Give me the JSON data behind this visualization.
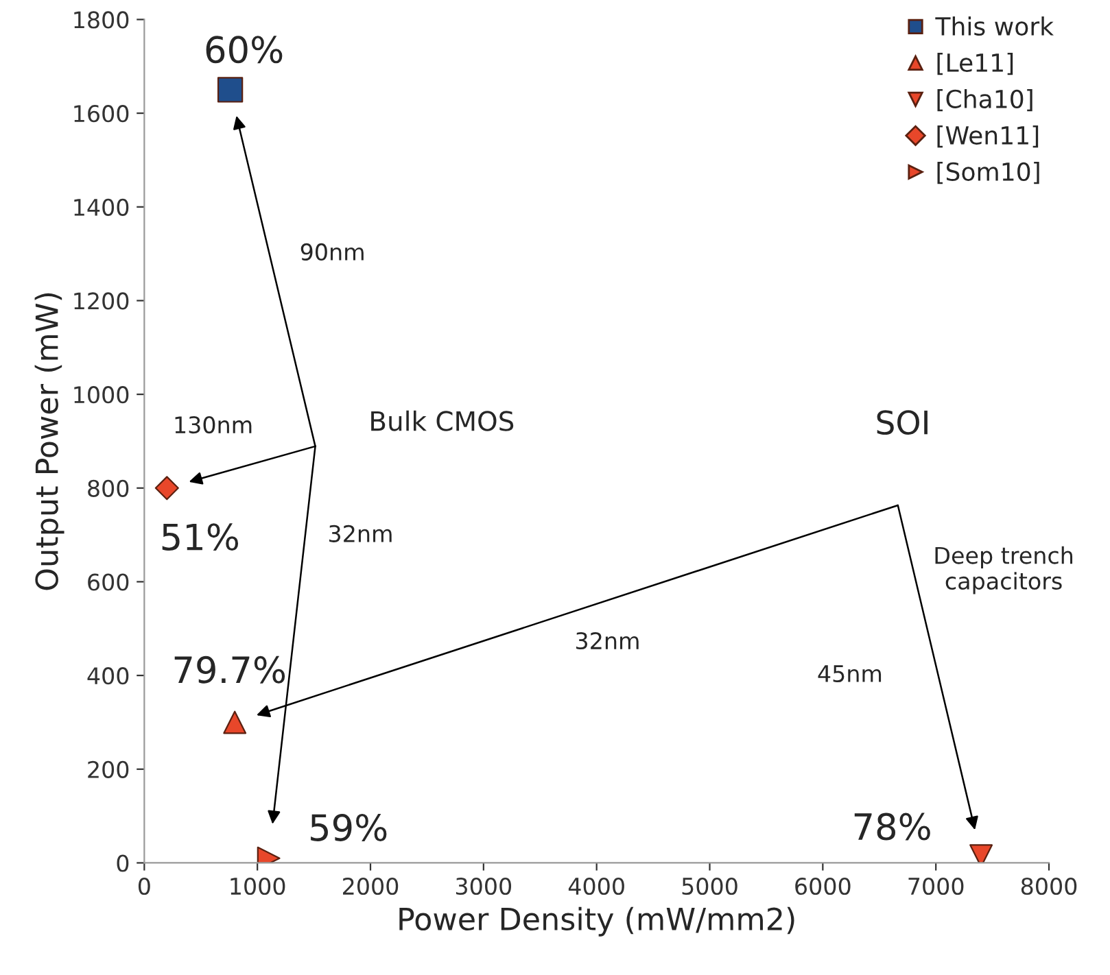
{
  "chart_data": {
    "type": "scatter",
    "xlabel": "Power Density (mW/mm2)",
    "ylabel": "Output Power (mW)",
    "xlim": [
      0,
      8000
    ],
    "xticks": [
      0,
      1000,
      2000,
      3000,
      4000,
      5000,
      6000,
      7000,
      8000
    ],
    "ylim": [
      0,
      1800
    ],
    "yticks": [
      0,
      200,
      400,
      600,
      800,
      1000,
      1200,
      1400,
      1600,
      1800
    ],
    "grid": false,
    "legend": "top right",
    "series": [
      {
        "name": "This work",
        "color": "#1f4e8c",
        "marker": "square",
        "x": [
          760
        ],
        "values": [
          1650
        ]
      },
      {
        "name": "[Le11]",
        "color": "#e8472a",
        "marker": "triangle",
        "x": [
          800
        ],
        "values": [
          300
        ]
      },
      {
        "name": "[Cha10]",
        "color": "#e8472a",
        "marker": "triangle_down",
        "x": [
          7400
        ],
        "values": [
          15
        ]
      },
      {
        "name": "[Wen11]",
        "color": "#e8472a",
        "marker": "diamond",
        "x": [
          200
        ],
        "values": [
          800
        ]
      },
      {
        "name": "[Som10]",
        "color": "#e8472a",
        "marker": "triangle_right",
        "x": [
          1100
        ],
        "values": [
          10
        ]
      }
    ],
    "annotations": [
      "60%",
      "79.7%",
      "78%",
      "51%",
      "59%",
      "Bulk CMOS",
      "SOI",
      "90nm",
      "130nm",
      "32nm",
      "32nm",
      "45nm",
      "Deep trench\ncapacitors"
    ]
  }
}
